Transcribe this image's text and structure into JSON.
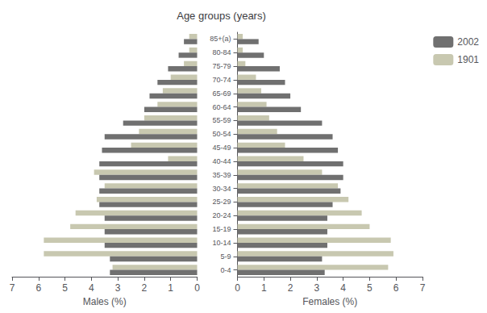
{
  "chart_data": [
    {
      "type": "bar",
      "orientation": "horizontal",
      "title": "Age groups (years)",
      "xlabel": "Males (%)",
      "categories": [
        "0-4",
        "5-9",
        "10-14",
        "15-19",
        "20-24",
        "25-29",
        "30-34",
        "35-39",
        "40-44",
        "45-49",
        "50-54",
        "55-59",
        "60-64",
        "65-69",
        "70-74",
        "75-79",
        "80-84",
        "85+(a)"
      ],
      "series": [
        {
          "name": "2002",
          "color": "#707070",
          "values": [
            3.3,
            3.3,
            3.5,
            3.5,
            3.5,
            3.7,
            3.7,
            3.7,
            3.7,
            3.6,
            3.5,
            2.8,
            2.0,
            1.8,
            1.5,
            1.1,
            0.7,
            0.5
          ]
        },
        {
          "name": "1901",
          "color": "#c8c8b0",
          "values": [
            3.2,
            5.8,
            5.8,
            4.8,
            4.6,
            3.8,
            3.5,
            3.9,
            1.1,
            2.5,
            2.2,
            2.0,
            1.5,
            1.3,
            1.0,
            0.5,
            0.3,
            0.3
          ]
        }
      ],
      "xlim": [
        7,
        0
      ],
      "xticks": [
        0,
        1,
        2,
        3,
        4,
        5,
        6,
        7
      ],
      "grid": false,
      "tick_labels": "x"
    },
    {
      "type": "bar",
      "orientation": "horizontal",
      "xlabel": "Females (%)",
      "categories": [
        "0-4",
        "5-9",
        "10-14",
        "15-19",
        "20-24",
        "25-29",
        "30-34",
        "35-39",
        "40-44",
        "45-49",
        "50-54",
        "55-59",
        "60-64",
        "65-69",
        "70-74",
        "75-79",
        "80-84",
        "85+(a)"
      ],
      "series": [
        {
          "name": "2002",
          "color": "#707070",
          "values": [
            3.3,
            3.2,
            3.4,
            3.4,
            3.4,
            3.6,
            3.9,
            4.0,
            4.0,
            3.8,
            3.6,
            3.2,
            2.4,
            2.0,
            1.8,
            1.6,
            1.0,
            0.8
          ]
        },
        {
          "name": "1901",
          "color": "#c8c8b0",
          "values": [
            5.7,
            5.9,
            5.8,
            5.0,
            4.7,
            4.2,
            3.8,
            3.2,
            2.5,
            1.8,
            1.5,
            1.2,
            1.1,
            0.9,
            0.7,
            0.3,
            0.2,
            0.2
          ]
        }
      ],
      "xlim": [
        0,
        7
      ],
      "xticks": [
        0,
        1,
        2,
        3,
        4,
        5,
        6,
        7
      ],
      "grid": false,
      "legend": "upper right"
    }
  ]
}
